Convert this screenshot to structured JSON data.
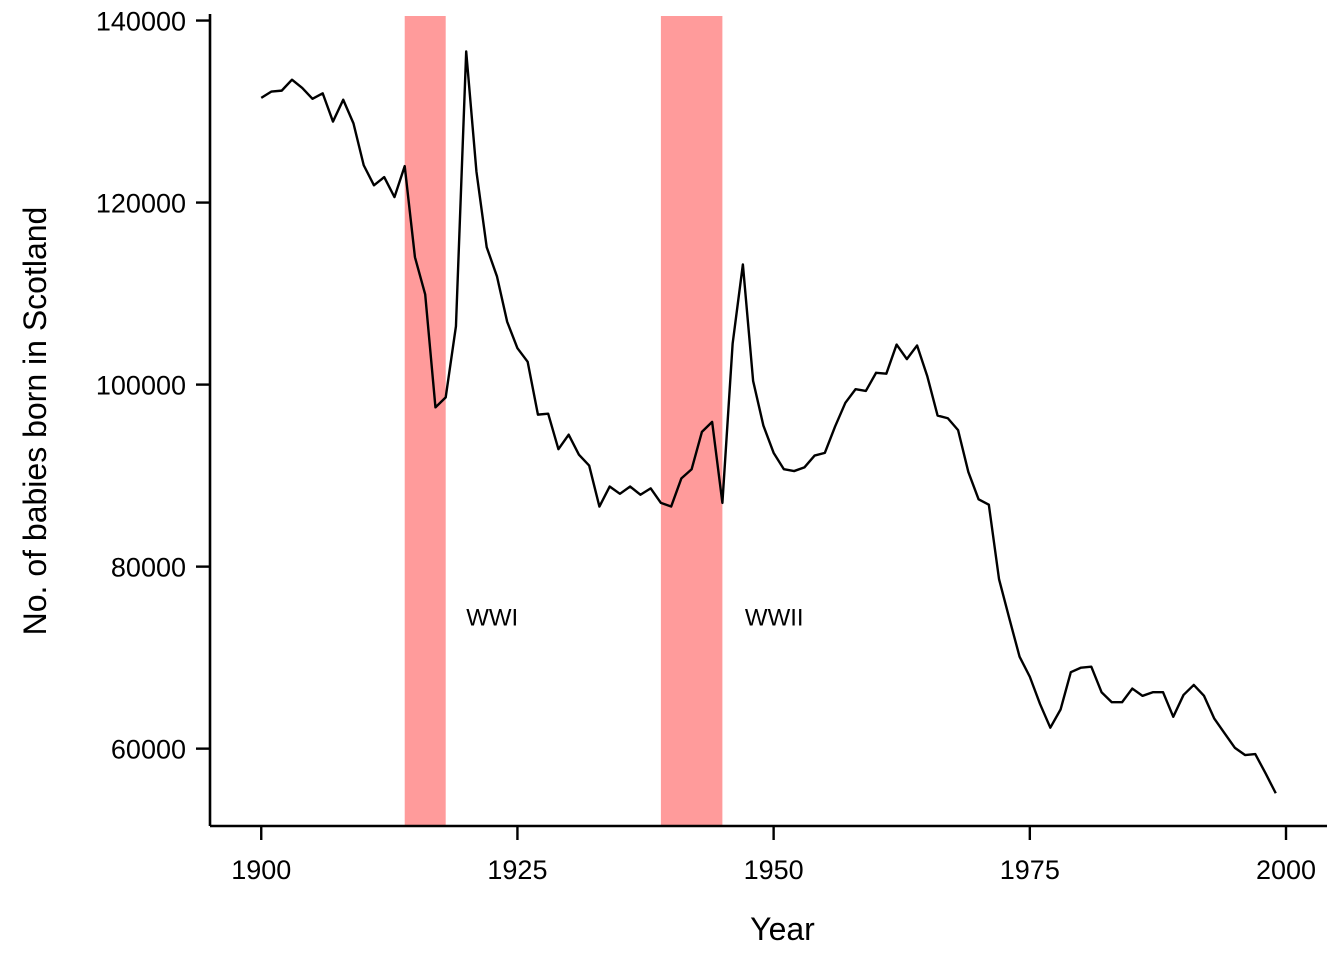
{
  "chart_data": {
    "type": "line",
    "title": "",
    "xlabel": "Year",
    "ylabel": "No. of babies born in Scotland",
    "xlim": [
      1895,
      2004
    ],
    "ylim": [
      51500,
      140500
    ],
    "xticks": [
      1900,
      1925,
      1950,
      1975,
      2000
    ],
    "yticks": [
      60000,
      80000,
      100000,
      120000,
      140000
    ],
    "grid": false,
    "line_color": "#000000",
    "band_color": "#ff9b9b",
    "bands": [
      {
        "label": "WWI",
        "start": 1914,
        "end": 1918,
        "label_x": 1920,
        "label_y": 74500
      },
      {
        "label": "WWII",
        "start": 1939,
        "end": 1945,
        "label_x": 1947.2,
        "label_y": 74500
      }
    ],
    "x": [
      1900,
      1901,
      1902,
      1903,
      1904,
      1905,
      1906,
      1907,
      1908,
      1909,
      1910,
      1911,
      1912,
      1913,
      1914,
      1915,
      1916,
      1917,
      1918,
      1919,
      1920,
      1921,
      1922,
      1923,
      1924,
      1925,
      1926,
      1927,
      1928,
      1929,
      1930,
      1931,
      1932,
      1933,
      1934,
      1935,
      1936,
      1937,
      1938,
      1939,
      1940,
      1941,
      1942,
      1943,
      1944,
      1945,
      1946,
      1947,
      1948,
      1949,
      1950,
      1951,
      1952,
      1953,
      1954,
      1955,
      1956,
      1957,
      1958,
      1959,
      1960,
      1961,
      1962,
      1963,
      1964,
      1965,
      1966,
      1967,
      1968,
      1969,
      1970,
      1971,
      1972,
      1973,
      1974,
      1975,
      1976,
      1977,
      1978,
      1979,
      1980,
      1981,
      1982,
      1983,
      1984,
      1985,
      1986,
      1987,
      1988,
      1989,
      1990,
      1991,
      1992,
      1993,
      1994,
      1995,
      1996,
      1997,
      1998,
      1999
    ],
    "series": [
      {
        "values": [
          131500,
          132200,
          132300,
          133500,
          132600,
          131400,
          132000,
          128900,
          131300,
          128700,
          124100,
          121900,
          122800,
          120600,
          124000,
          114000,
          109900,
          97500,
          98600,
          106400,
          136600,
          123400,
          115100,
          111900,
          106900,
          104000,
          102500,
          96700,
          96800,
          92900,
          94500,
          92300,
          91100,
          86600,
          88800,
          88000,
          88800,
          87900,
          88600,
          87000,
          86600,
          89700,
          90700,
          94800,
          95900,
          87000,
          104500,
          113200,
          100400,
          95500,
          92500,
          90700,
          90500,
          90900,
          92200,
          92500,
          95400,
          98000,
          99500,
          99300,
          101300,
          101200,
          104400,
          102800,
          104300,
          100900,
          96600,
          96300,
          95000,
          90400,
          87400,
          86800,
          78600,
          74300,
          70100,
          67900,
          64900,
          62300,
          64300,
          68400,
          68900,
          69000,
          66200,
          65100,
          65100,
          66600,
          65800,
          66200,
          66200,
          63500,
          65900,
          67000,
          65800,
          63300,
          61700,
          60100,
          59300,
          59400,
          57300,
          55100
        ]
      }
    ]
  }
}
